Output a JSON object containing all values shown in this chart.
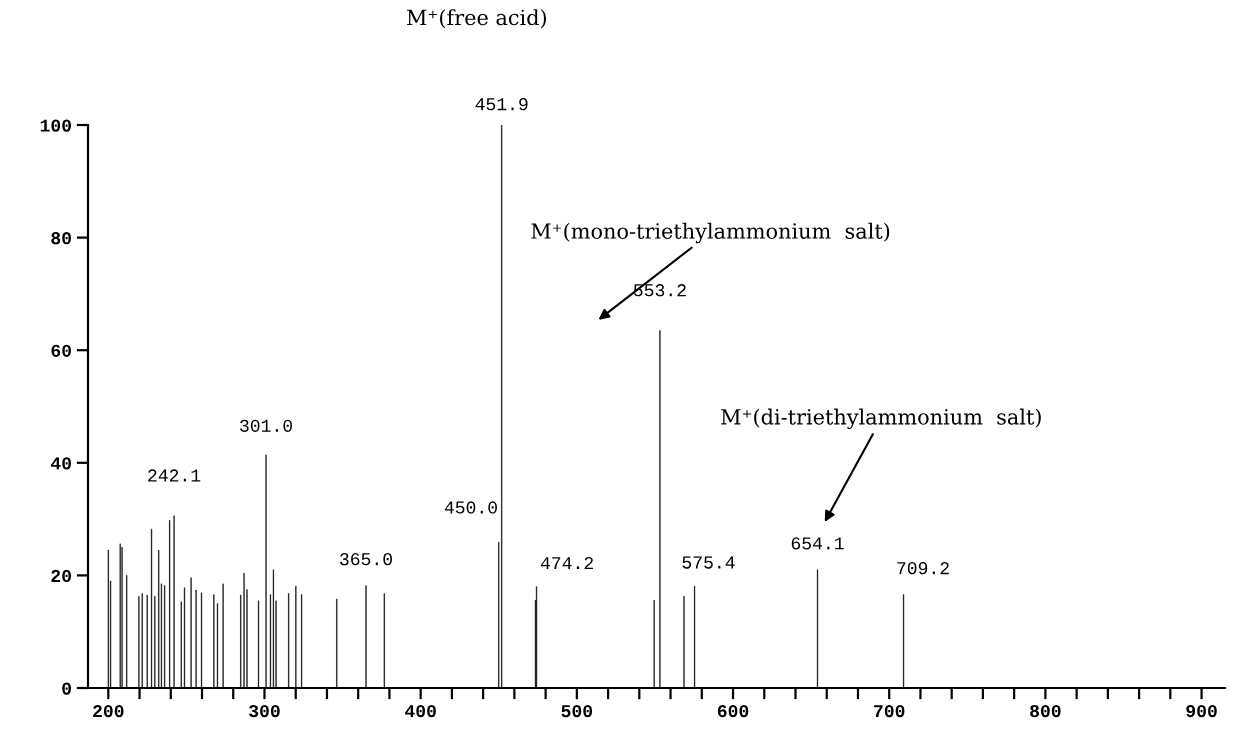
{
  "chart_data": {
    "type": "bar",
    "x": [
      200,
      201.5,
      207.6,
      208.8,
      211.8,
      219.6,
      221.7,
      224.9,
      227.7,
      229.8,
      232.3,
      234,
      236.1,
      239.3,
      242.1,
      246.7,
      248.8,
      253,
      256.2,
      259.7,
      267.6,
      269.9,
      273.5,
      284.8,
      286.9,
      288.8,
      296.2,
      301.0,
      303.8,
      305.7,
      307.4,
      315.5,
      320.1,
      323.8,
      346.3,
      365.0,
      376.7,
      450.0,
      451.9,
      473.5,
      474.2,
      549.5,
      553.2,
      568.6,
      575.4,
      654.1,
      709.2
    ],
    "values": [
      24.5,
      19,
      25.6,
      25,
      20,
      16.3,
      16.8,
      16.5,
      28.2,
      16.3,
      24.5,
      18.5,
      18.2,
      29.8,
      30.6,
      15.3,
      17.8,
      19.6,
      17.4,
      16.9,
      16.6,
      15,
      18.5,
      16.5,
      20.4,
      17.5,
      15.5,
      41.4,
      16.6,
      21,
      15.5,
      16.8,
      18.1,
      16.6,
      15.8,
      18.2,
      16.8,
      25.9,
      100,
      15.6,
      18,
      15.6,
      63.5,
      16.3,
      18.1,
      21,
      16.6
    ],
    "color": "#000000",
    "xlim": [
      187,
      915
    ],
    "xticks": [
      200,
      {
        "value": 220,
        "label": null
      },
      {
        "value": 240,
        "label": null
      },
      {
        "value": 260,
        "label": null
      },
      {
        "value": 280,
        "label": null
      },
      300,
      {
        "value": 320,
        "label": null
      },
      {
        "value": 340,
        "label": null
      },
      {
        "value": 360,
        "label": null
      },
      {
        "value": 380,
        "label": null
      },
      400,
      {
        "value": 420,
        "label": null
      },
      {
        "value": 440,
        "label": null
      },
      {
        "value": 460,
        "label": null
      },
      {
        "value": 480,
        "label": null
      },
      500,
      {
        "value": 520,
        "label": null
      },
      {
        "value": 540,
        "label": null
      },
      {
        "value": 560,
        "label": null
      },
      {
        "value": 580,
        "label": null
      },
      600,
      {
        "value": 620,
        "label": null
      },
      {
        "value": 640,
        "label": null
      },
      {
        "value": 660,
        "label": null
      },
      {
        "value": 680,
        "label": null
      },
      700,
      {
        "value": 720,
        "label": null
      },
      {
        "value": 740,
        "label": null
      },
      {
        "value": 760,
        "label": null
      },
      {
        "value": 780,
        "label": null
      },
      800,
      {
        "value": 820,
        "label": null
      },
      {
        "value": 840,
        "label": null
      },
      {
        "value": 860,
        "label": null
      },
      {
        "value": 880,
        "label": null
      },
      900
    ],
    "ylim": [
      0,
      100
    ],
    "yticks": [
      0,
      20,
      40,
      60,
      80,
      100
    ],
    "annotations": [
      {
        "text": "451.9",
        "x": 451.9,
        "y": 100
      },
      {
        "text": "301.0",
        "x": 301.0,
        "y": 41.4
      },
      {
        "text": "242.1",
        "x": 242.1,
        "y": 30.6
      },
      {
        "text": "365.0",
        "x": 365.0,
        "y": 18.2
      },
      {
        "text": "450.0",
        "x": 450.0,
        "y": 25.9
      },
      {
        "text": "474.2",
        "x": 474.2,
        "y": 18
      },
      {
        "text": "553.2",
        "x": 553.2,
        "y": 63.5
      },
      {
        "text": "575.4",
        "x": 575.4,
        "y": 18.1
      },
      {
        "text": "654.1",
        "x": 654.1,
        "y": 21
      },
      {
        "text": "709.2",
        "x": 709.2,
        "y": 16.6
      },
      "M⁺(free acid)",
      "M⁺(mono-triethylammonium  salt)",
      "M⁺(di-triethylammonium  salt)"
    ]
  }
}
